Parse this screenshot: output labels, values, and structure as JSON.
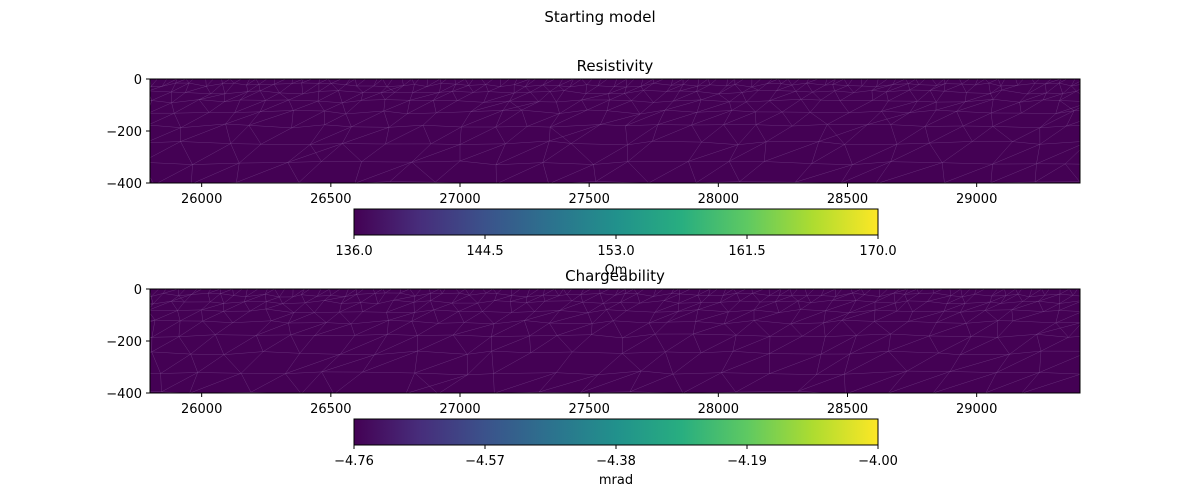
{
  "figure": {
    "suptitle": "Starting model"
  },
  "chart_data": [
    {
      "type": "heatmap",
      "title": "Resistivity",
      "xlabel": "",
      "ylabel": "",
      "xlim": [
        25800,
        29400
      ],
      "ylim": [
        -400,
        0
      ],
      "x_ticks": [
        26000,
        26500,
        27000,
        27500,
        28000,
        28500,
        29000
      ],
      "y_ticks": [
        0,
        -200,
        -400
      ],
      "x_tick_labels": [
        "26000",
        "26500",
        "27000",
        "27500",
        "28000",
        "28500",
        "29000"
      ],
      "y_tick_labels": [
        "0",
        "−200",
        "−400"
      ],
      "field_value": 136.0,
      "mesh": "triangular",
      "colormap": "viridis",
      "colorbar": {
        "orientation": "horizontal",
        "range": [
          136.0,
          170.0
        ],
        "ticks": [
          136.0,
          144.5,
          153.0,
          161.5,
          170.0
        ],
        "tick_labels": [
          "136.0",
          "144.5",
          "153.0",
          "161.5",
          "170.0"
        ],
        "label": "Ωm"
      }
    },
    {
      "type": "heatmap",
      "title": "Chargeability",
      "xlabel": "",
      "ylabel": "",
      "xlim": [
        25800,
        29400
      ],
      "ylim": [
        -400,
        0
      ],
      "x_ticks": [
        26000,
        26500,
        27000,
        27500,
        28000,
        28500,
        29000
      ],
      "y_ticks": [
        0,
        -200,
        -400
      ],
      "x_tick_labels": [
        "26000",
        "26500",
        "27000",
        "27500",
        "28000",
        "28500",
        "29000"
      ],
      "y_tick_labels": [
        "0",
        "−200",
        "−400"
      ],
      "field_value": -4.76,
      "mesh": "triangular",
      "colormap": "viridis",
      "colorbar": {
        "orientation": "horizontal",
        "range": [
          -4.76,
          -4.0
        ],
        "ticks": [
          -4.76,
          -4.57,
          -4.38,
          -4.19,
          -4.0
        ],
        "tick_labels": [
          "−4.76",
          "−4.57",
          "−4.38",
          "−4.19",
          "−4.00"
        ],
        "label": "mrad"
      }
    }
  ]
}
